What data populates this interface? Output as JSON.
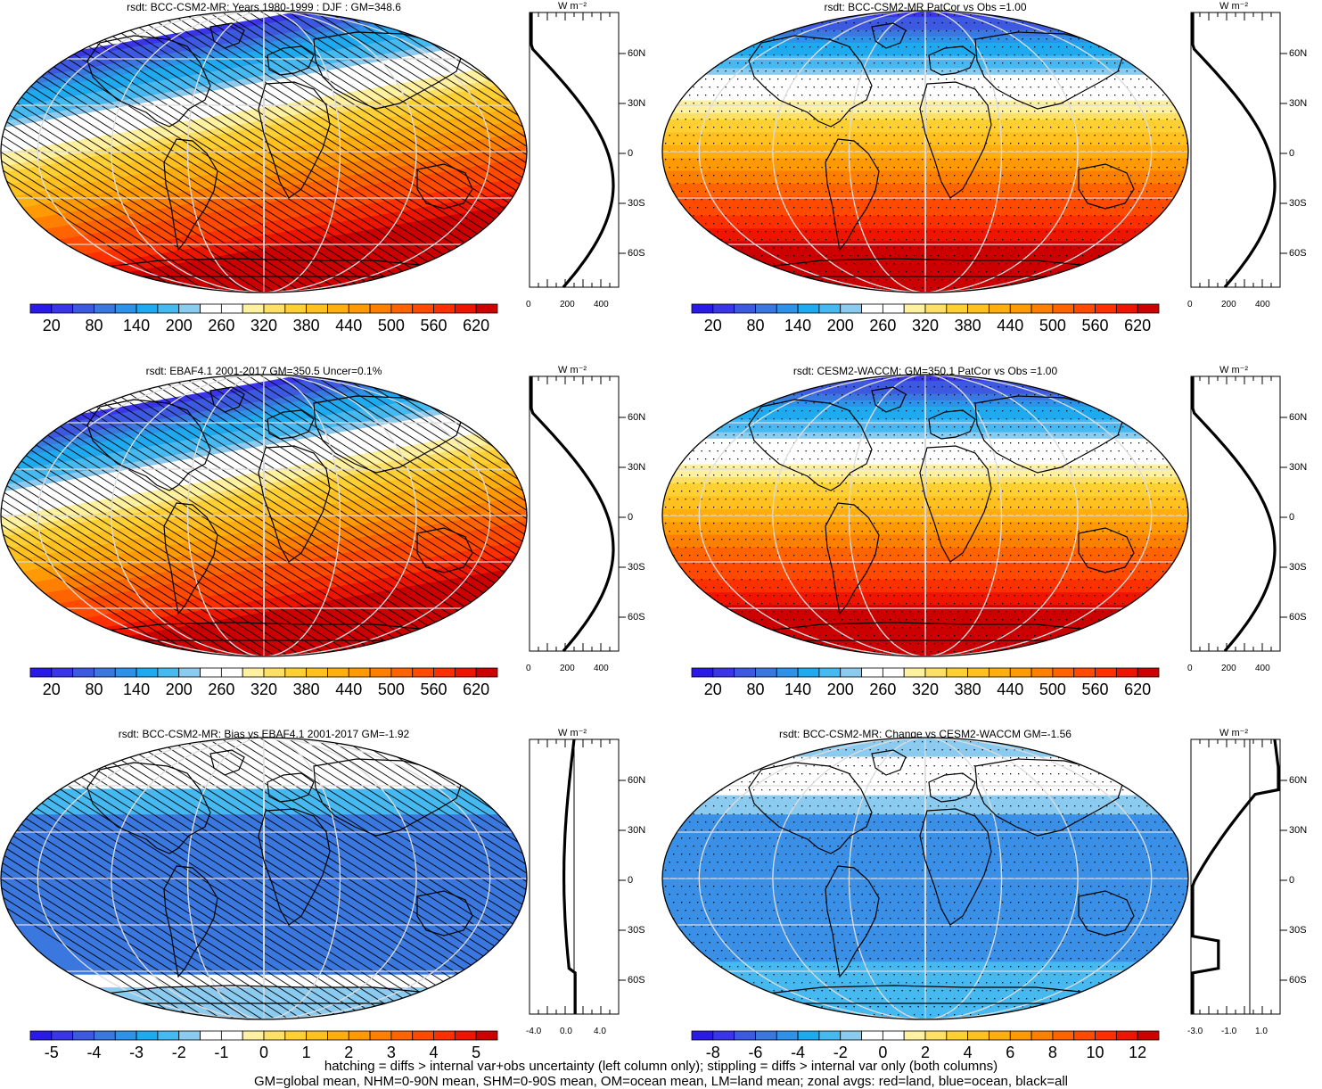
{
  "panels": [
    {
      "id": "p1",
      "title": "rsdt: BCC-CSM2-MR: Years 1980-1999 : DJF : GM=348.6",
      "kind": "abs",
      "pattern": "hatch",
      "tilt": true,
      "cb_labels": [
        "20",
        "80",
        "140",
        "200",
        "260",
        "320",
        "380",
        "440",
        "500",
        "560",
        "620"
      ],
      "prof_x": [
        "0",
        "200",
        "400"
      ],
      "prof_lat": [
        "60N",
        "30N",
        "0",
        "30S",
        "60S"
      ],
      "unit": "W m⁻²"
    },
    {
      "id": "p2",
      "title": "rsdt: BCC-CSM2-MR PatCor vs Obs =1.00",
      "kind": "abs",
      "pattern": "dots",
      "tilt": false,
      "cb_labels": [
        "20",
        "80",
        "140",
        "200",
        "260",
        "320",
        "380",
        "440",
        "500",
        "560",
        "620"
      ],
      "prof_x": [
        "0",
        "200",
        "400"
      ],
      "prof_lat": [
        "60N",
        "30N",
        "0",
        "30S",
        "60S"
      ],
      "unit": "W m⁻²"
    },
    {
      "id": "p3",
      "title": "rsdt: EBAF4.1 2001-2017 GM=350.5 Uncer=0.1%",
      "kind": "abs",
      "pattern": "hatch",
      "tilt": true,
      "cb_labels": [
        "20",
        "80",
        "140",
        "200",
        "260",
        "320",
        "380",
        "440",
        "500",
        "560",
        "620"
      ],
      "prof_x": [
        "0",
        "200",
        "400"
      ],
      "prof_lat": [
        "60N",
        "30N",
        "0",
        "30S",
        "60S"
      ],
      "unit": "W m⁻²"
    },
    {
      "id": "p4",
      "title": "rsdt: CESM2-WACCM: GM=350.1 PatCor vs Obs =1.00",
      "kind": "abs",
      "pattern": "dots",
      "tilt": false,
      "cb_labels": [
        "20",
        "80",
        "140",
        "200",
        "260",
        "320",
        "380",
        "440",
        "500",
        "560",
        "620"
      ],
      "prof_x": [
        "0",
        "200",
        "400"
      ],
      "prof_lat": [
        "60N",
        "30N",
        "0",
        "30S",
        "60S"
      ],
      "unit": "W m⁻²"
    },
    {
      "id": "p5",
      "title": "rsdt: BCC-CSM2-MR: Bias vs EBAF4.1 2001-2017 GM=-1.92",
      "kind": "bias",
      "pattern": "hatch",
      "tilt": false,
      "cb_labels": [
        "-5",
        "-4",
        "-3",
        "-2",
        "-1",
        "0",
        "1",
        "2",
        "3",
        "4",
        "5"
      ],
      "prof_x": [
        "-4.0",
        "0.0",
        "4.0"
      ],
      "prof_lat": [
        "60N",
        "30N",
        "0",
        "30S",
        "60S"
      ],
      "unit": "W m⁻²"
    },
    {
      "id": "p6",
      "title": "rsdt: BCC-CSM2-MR: Change vs CESM2-WACCM GM=-1.56",
      "kind": "change",
      "pattern": "dots",
      "tilt": false,
      "cb_labels": [
        "-8",
        "-6",
        "-4",
        "-2",
        "0",
        "2",
        "4",
        "6",
        "8",
        "10",
        "12"
      ],
      "prof_x": [
        "-3.0",
        "-1.0",
        "1.0"
      ],
      "prof_lat": [
        "60N",
        "30N",
        "0",
        "30S",
        "60S"
      ],
      "unit": "W m⁻²"
    }
  ],
  "footer": {
    "line1": "hatching = diffs > internal var+obs uncertainty (left column only); stippling = diffs > internal var only (both columns)",
    "line2": "GM=global mean, NHM=0-90N mean, SHM=0-90S mean, OM=ocean mean, LM=land mean; zonal avgs: red=land, blue=ocean, black=all"
  },
  "colors": {
    "abs_scale": [
      "#2a1ae6",
      "#3a36e8",
      "#3d59e0",
      "#3a78e0",
      "#2d92e8",
      "#1faaf0",
      "#45b9f0",
      "#8ccbf0",
      "#ffffff",
      "#ffffff",
      "#fff1a0",
      "#ffe066",
      "#ffd033",
      "#ffc020",
      "#ffae10",
      "#ff9a05",
      "#ff8000",
      "#ff6400",
      "#ff4a00",
      "#ff3000",
      "#ee1500",
      "#cc0000"
    ],
    "diff_scale": [
      "#2a1ae6",
      "#3a36e8",
      "#3d59e0",
      "#3a78e0",
      "#2d92e8",
      "#1faaf0",
      "#45b9f0",
      "#8ccbf0",
      "#ffffff",
      "#ffffff",
      "#fff1a0",
      "#ffe066",
      "#ffd033",
      "#ffc020",
      "#ffae10",
      "#ff9a05",
      "#ff8000",
      "#ff6400",
      "#ff4a00",
      "#ff3000",
      "#ee1500",
      "#cc0000"
    ],
    "profile_line": "#000000",
    "land_line": "#d01010"
  }
}
